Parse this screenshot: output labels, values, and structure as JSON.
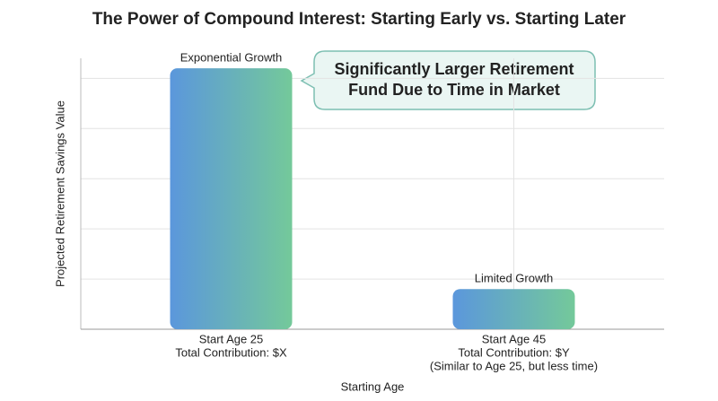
{
  "chart_data": {
    "type": "bar",
    "title": "The Power of Compound Interest: Starting Early vs. Starting Later",
    "y_label": "Projected Retirement Savings Value",
    "x_label": "Starting Age",
    "categories": [
      [
        "Start Age 25",
        "Total Contribution: $X"
      ],
      [
        "Start Age 45",
        "Total Contribution: $Y",
        "(Similar to Age 25, but less time)"
      ]
    ],
    "values": [
      5.2,
      0.8
    ],
    "bar_labels": [
      "Exponential Growth",
      "Limited Growth"
    ],
    "callout": [
      "Significantly Larger Retirement",
      "Fund Due to Time in Market"
    ],
    "colors": [
      "#5b97dc",
      "#74c99a"
    ],
    "ylim": [
      0,
      5.4
    ],
    "yticks": [
      1,
      2,
      3,
      4,
      5
    ],
    "grid": true
  }
}
